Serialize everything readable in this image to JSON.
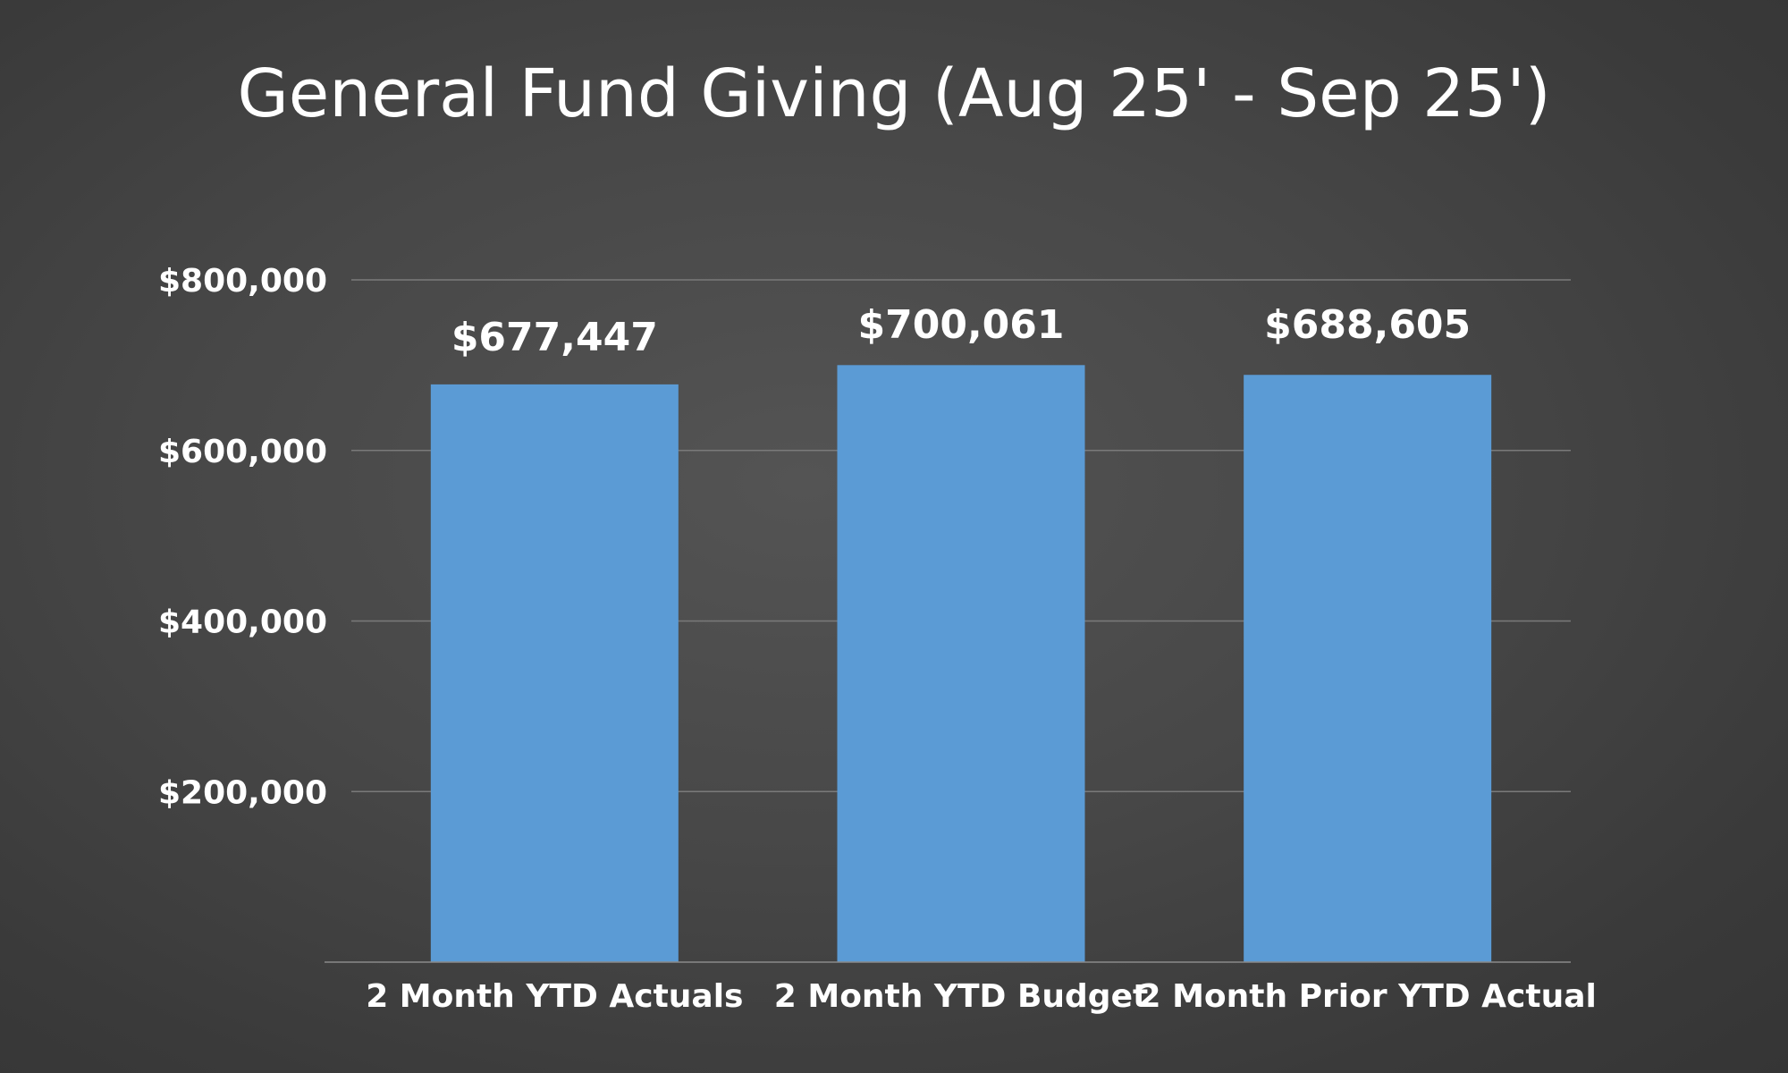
{
  "chart_data": {
    "type": "bar",
    "title": "General Fund Giving (Aug 25' - Sep 25')",
    "categories": [
      "2 Month YTD Actuals",
      "2 Month YTD Budget",
      "2 Month Prior YTD Actual"
    ],
    "values": [
      677447,
      700061,
      688605
    ],
    "data_labels": [
      "$677,447",
      "$700,061",
      "$688,605"
    ],
    "xlabel": "",
    "ylabel": "",
    "ylim": [
      0,
      800000
    ],
    "yticks": [
      200000,
      400000,
      600000,
      800000
    ],
    "ytick_labels": [
      "$200,000",
      "$400,000",
      "$600,000",
      "$800,000"
    ],
    "grid": true,
    "legend": "none",
    "colors": {
      "bar": "#5b9bd5",
      "background": "#474747",
      "text": "#ffffff",
      "grid": "#7a7a7a"
    }
  }
}
